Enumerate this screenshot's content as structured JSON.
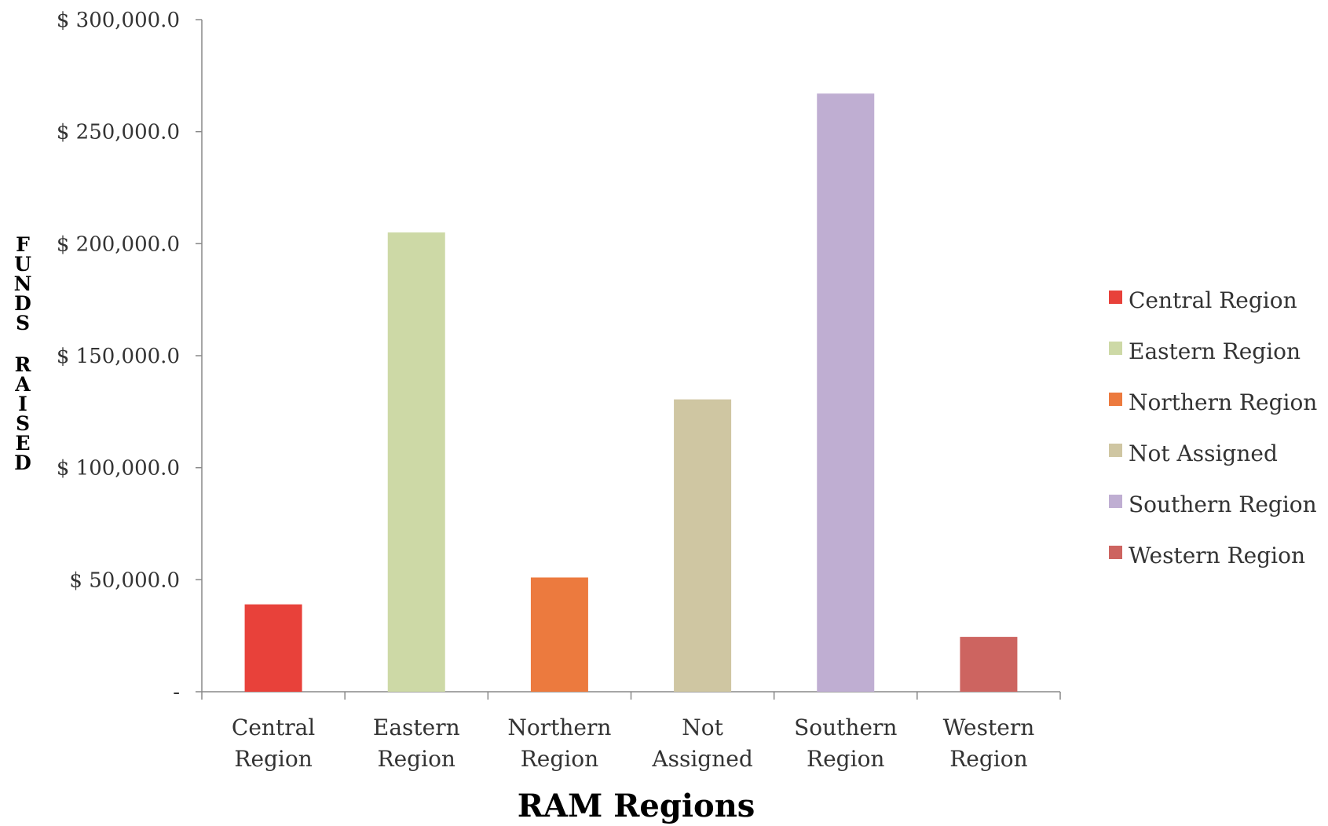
{
  "chart_data": {
    "type": "bar",
    "categories": [
      "Central Region",
      "Eastern Region",
      "Northern Region",
      "Not Assigned",
      "Southern Region",
      "Western Region"
    ],
    "category_lines": [
      [
        "Central",
        "Region"
      ],
      [
        "Eastern",
        "Region"
      ],
      [
        "Northern",
        "Region"
      ],
      [
        "Not",
        "Assigned"
      ],
      [
        "Southern",
        "Region"
      ],
      [
        "Western",
        "Region"
      ]
    ],
    "values": [
      39000,
      205000,
      51000,
      130500,
      267000,
      24500
    ],
    "colors": [
      "#e8413a",
      "#cdd9a6",
      "#ec7a3e",
      "#cfc6a2",
      "#bfaed2",
      "#cd6460"
    ],
    "xlabel": "RAM Regions",
    "ylabel_lines": [
      "FUNDS",
      "RAISED"
    ],
    "ylim": [
      0,
      300000
    ],
    "yticks": [
      0,
      50000,
      100000,
      150000,
      200000,
      250000,
      300000
    ],
    "ytick_labels": [
      "-",
      "$ 50,000.0",
      "$ 100,000.0",
      "$ 150,000.0",
      "$ 200,000.0",
      "$ 250,000.0",
      "$ 300,000.0"
    ],
    "legend": [
      "Central Region",
      "Eastern Region",
      "Northern Region",
      "Not Assigned",
      "Southern Region",
      "Western Region"
    ],
    "legend_position": "right",
    "grid": false
  }
}
